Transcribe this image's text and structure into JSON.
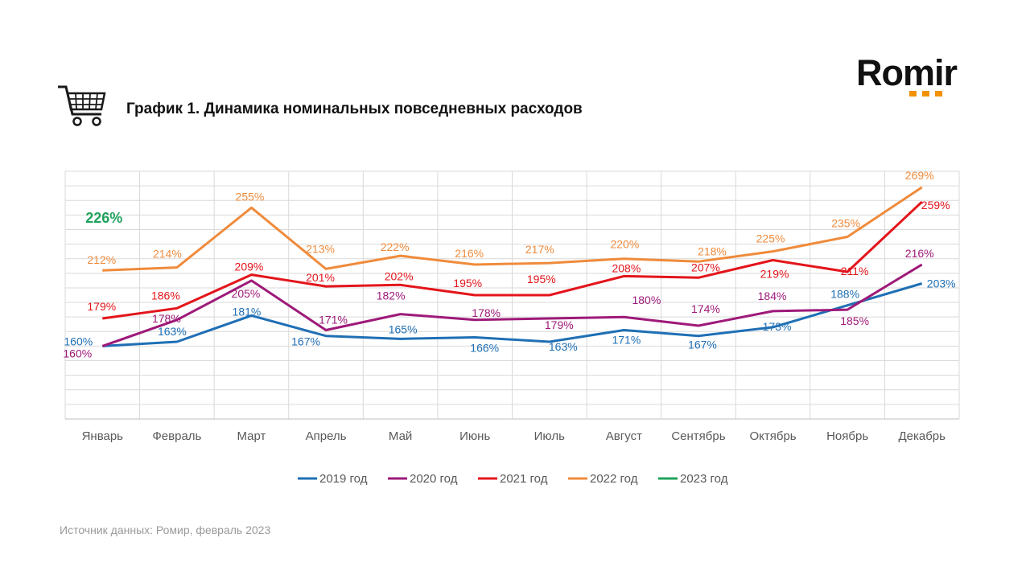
{
  "header": {
    "title": "График 1. Динамика номинальных повседневных расходов"
  },
  "logo": {
    "text": "Romir",
    "accent": "#f39200"
  },
  "footer": {
    "source": "Источник данных: Ромир, февраль 2023"
  },
  "chart_data": {
    "type": "line",
    "categories": [
      "Январь",
      "Февраль",
      "Март",
      "Апрель",
      "Май",
      "Июнь",
      "Июль",
      "Август",
      "Сентябрь",
      "Октябрь",
      "Ноябрь",
      "Декабрь"
    ],
    "ylim": [
      110,
      280
    ],
    "grid": true,
    "legend_position": "bottom",
    "value_suffix": "%",
    "series": [
      {
        "name": "2019 год",
        "color": "#1f6fb5",
        "values": [
          160,
          163,
          181,
          167,
          165,
          166,
          163,
          171,
          167,
          173,
          188,
          203
        ],
        "labels": [
          "160%",
          "163%",
          "181%",
          "167%",
          "165%",
          "166%",
          "163%",
          "171%",
          "167%",
          "173%",
          "188%",
          "203%"
        ]
      },
      {
        "name": "2020 год",
        "color": "#9e1a79",
        "values": [
          160,
          178,
          205,
          171,
          182,
          178,
          179,
          180,
          174,
          184,
          185,
          216
        ],
        "labels": [
          "160%",
          "178%",
          "205%",
          "171%",
          "182%",
          "178%",
          "179%",
          "180%",
          "174%",
          "184%",
          "185%",
          "216%"
        ]
      },
      {
        "name": "2021 год",
        "color": "#e3151b",
        "values": [
          179,
          186,
          209,
          201,
          202,
          195,
          195,
          208,
          207,
          219,
          211,
          259
        ],
        "labels": [
          "179%",
          "186%",
          "209%",
          "201%",
          "202%",
          "195%",
          "195%",
          "208%",
          "207%",
          "219%",
          "211%",
          "259%"
        ]
      },
      {
        "name": "2022 год",
        "color": "#ef8b3c",
        "values": [
          212,
          214,
          255,
          213,
          222,
          216,
          217,
          220,
          218,
          225,
          235,
          269
        ],
        "labels": [
          "212%",
          "214%",
          "255%",
          "213%",
          "222%",
          "216%",
          "217%",
          "220%",
          "218%",
          "225%",
          "235%",
          "269%"
        ]
      },
      {
        "name": "2023 год",
        "color": "#1fa35c",
        "values": [
          226,
          null,
          null,
          null,
          null,
          null,
          null,
          null,
          null,
          null,
          null,
          null
        ],
        "labels": [
          "226%",
          null,
          null,
          null,
          null,
          null,
          null,
          null,
          null,
          null,
          null,
          null
        ]
      }
    ]
  }
}
